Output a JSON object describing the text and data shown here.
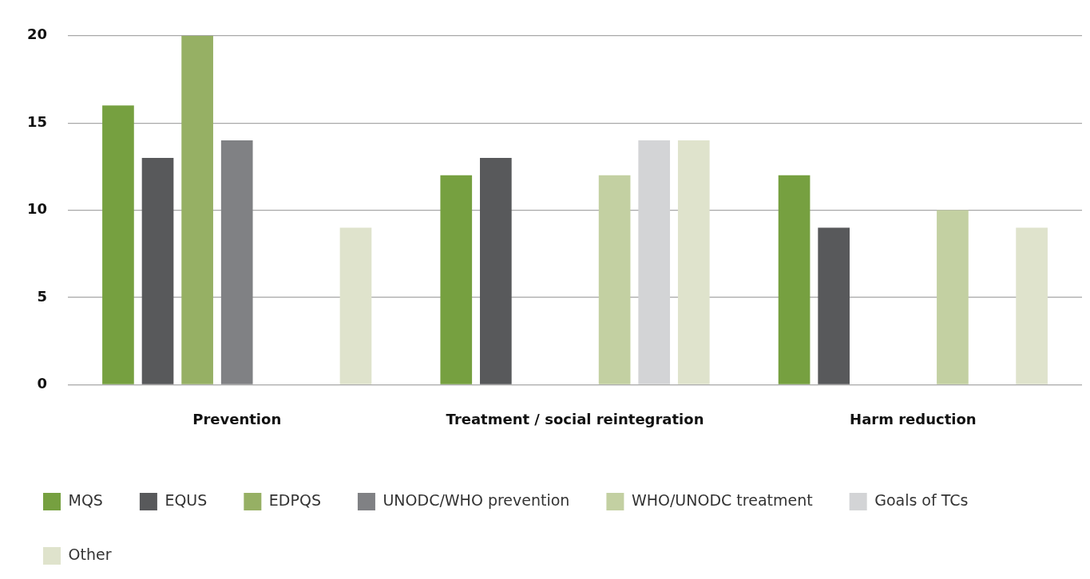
{
  "chart_data": {
    "type": "bar",
    "categories": [
      "Prevention",
      "Treatment / social reintegration",
      "Harm reduction"
    ],
    "series": [
      {
        "name": "MQS",
        "color": "#76a040",
        "values": [
          16,
          12,
          12
        ]
      },
      {
        "name": "EQUS",
        "color": "#58595b",
        "values": [
          13,
          13,
          9
        ]
      },
      {
        "name": "EDPQS",
        "color": "#96b064",
        "values": [
          20,
          null,
          null
        ]
      },
      {
        "name": "UNODC/WHO prevention",
        "color": "#808184",
        "values": [
          14,
          null,
          null
        ]
      },
      {
        "name": "WHO/UNODC treatment",
        "color": "#c3d0a2",
        "values": [
          null,
          12,
          10
        ]
      },
      {
        "name": "Goals of TCs",
        "color": "#d3d4d6",
        "values": [
          null,
          14,
          null
        ]
      },
      {
        "name": "Other",
        "color": "#dfe3cc",
        "values": [
          9,
          14,
          9
        ]
      }
    ],
    "ylim": [
      0,
      20
    ],
    "yticks": [
      0,
      5,
      10,
      15,
      20
    ],
    "grid": "y",
    "legend": "bottom"
  }
}
